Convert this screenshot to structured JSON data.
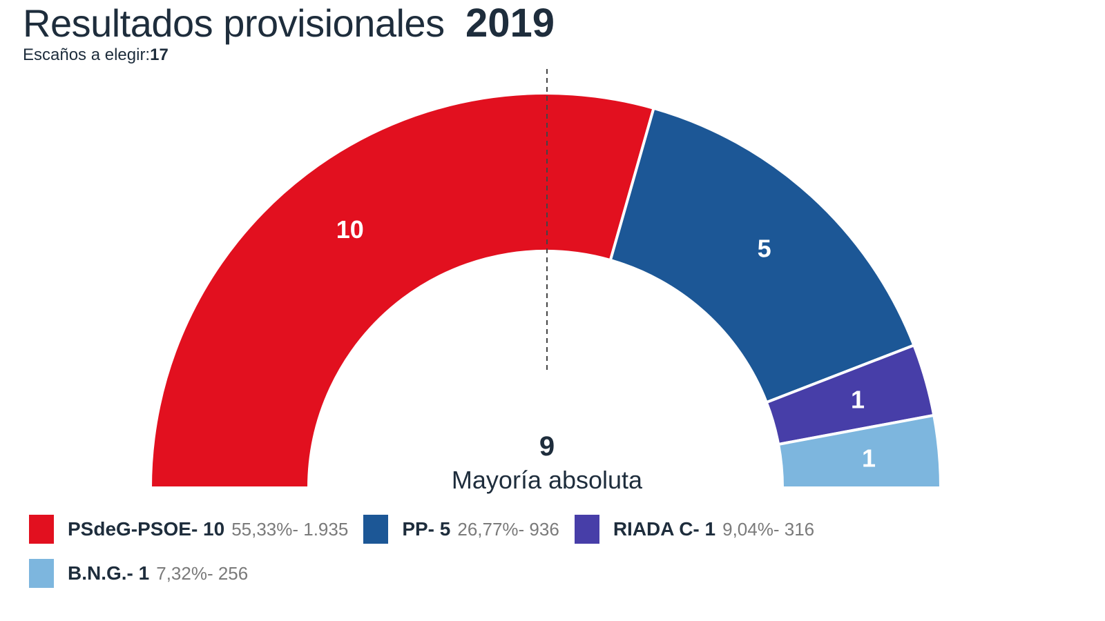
{
  "header": {
    "title": "Resultados provisionales",
    "year": "2019",
    "seats_label": "Escaños a elegir:",
    "seats_total": "17"
  },
  "chart_data": {
    "type": "pie",
    "subtype": "hemicycle",
    "total_seats": 17,
    "majority": {
      "value": "9",
      "label": "Mayoría absoluta"
    },
    "series": [
      {
        "name": "PSdeG-PSOE",
        "seats": 10,
        "seat_label": "10",
        "percent": "55,33%",
        "votes": "1.935",
        "color": "#e2101f"
      },
      {
        "name": "PP",
        "seats": 5,
        "seat_label": "5",
        "percent": "26,77%",
        "votes": "936",
        "color": "#1c5796"
      },
      {
        "name": "RIADA C",
        "seats": 1,
        "seat_label": "1",
        "percent": "9,04%",
        "votes": "316",
        "color": "#473ea8"
      },
      {
        "name": "B.N.G.",
        "seats": 1,
        "seat_label": "1",
        "percent": "7,32%",
        "votes": "256",
        "color": "#7db6de"
      }
    ]
  },
  "legend": {
    "items": [
      {
        "label": "PSdeG-PSOE- 10",
        "detail": "55,33%- 1.935"
      },
      {
        "label": "PP- 5",
        "detail": "26,77%- 936"
      },
      {
        "label": "RIADA C- 1",
        "detail": "9,04%- 316"
      },
      {
        "label": "B.N.G.- 1",
        "detail": "7,32%- 256"
      }
    ]
  }
}
